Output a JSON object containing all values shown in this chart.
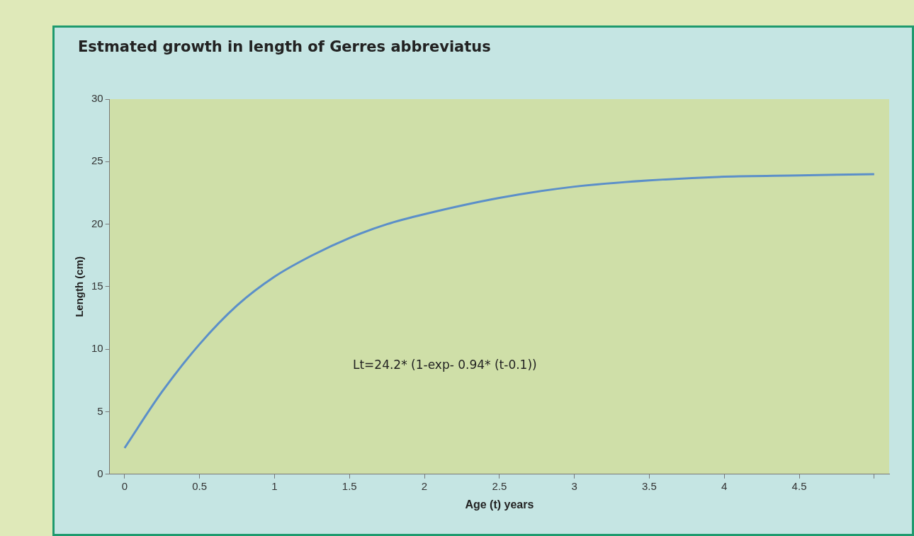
{
  "chart_data": {
    "type": "line",
    "title": "Estmated growth in length of Gerres abbreviatus",
    "xlabel": "Age (t) years",
    "ylabel": "Length (cm)",
    "annotations": [
      "Lt=24.2* (1-exp- 0.94* (t-0.1))"
    ],
    "x": [
      0,
      0.25,
      0.5,
      0.75,
      1,
      1.25,
      1.5,
      1.75,
      2,
      2.5,
      3,
      3.5,
      4,
      4.5,
      5
    ],
    "series": [
      {
        "color": "#5b8fc9",
        "values": [
          2.1,
          6.6,
          10.4,
          13.5,
          15.8,
          17.5,
          18.9,
          20.0,
          20.8,
          22.1,
          23.0,
          23.5,
          23.8,
          23.9,
          24.0
        ]
      }
    ],
    "xlim": [
      -0.1,
      5.1
    ],
    "xticks": [
      0,
      0.5,
      1,
      1.5,
      2,
      2.5,
      3,
      3.5,
      4,
      4.5,
      {
        "value": 5,
        "label": null
      }
    ],
    "ylim": [
      0,
      30
    ],
    "yticks": [
      0,
      5,
      10,
      15,
      20,
      25,
      30
    ],
    "grid": false,
    "legend": false,
    "marker": "none",
    "line_style": "solid"
  }
}
